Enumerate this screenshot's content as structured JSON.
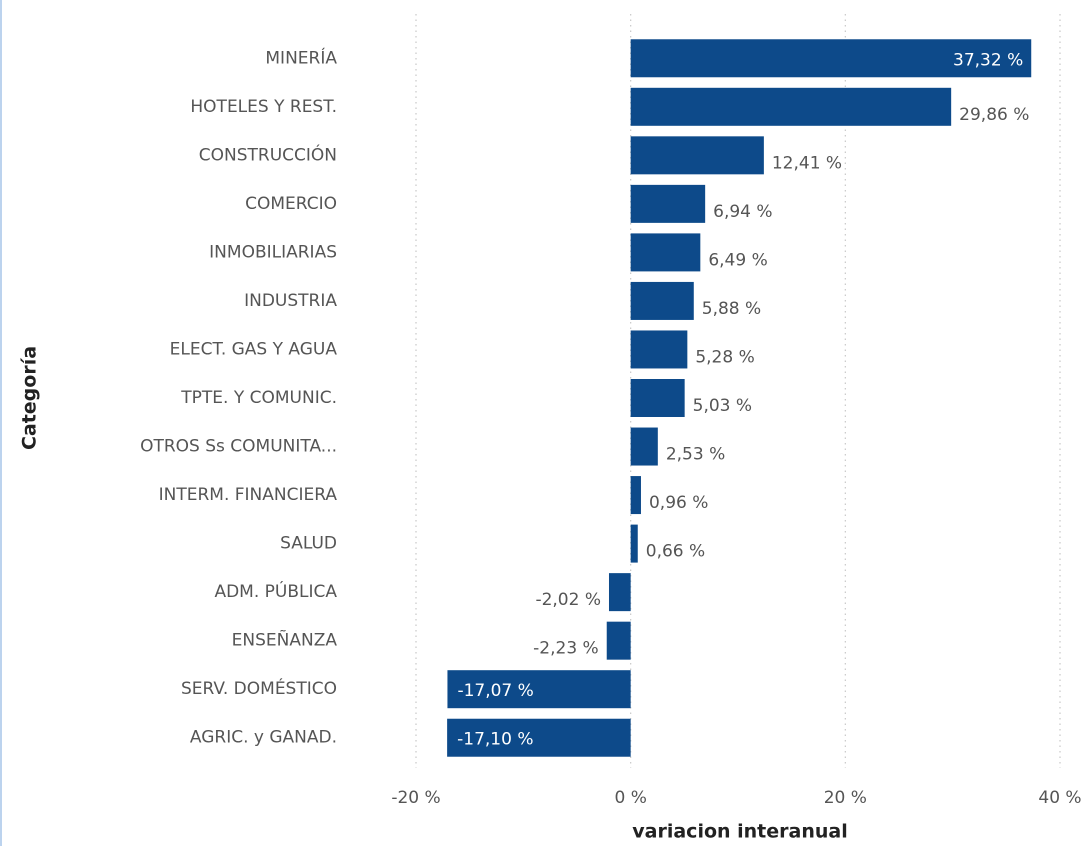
{
  "chart_data": {
    "type": "bar",
    "orientation": "horizontal",
    "xlabel": "variacion interanual",
    "ylabel": "Categoría",
    "categories": [
      "MINERÍA",
      "HOTELES Y REST.",
      "CONSTRUCCIÓN",
      "COMERCIO",
      "INMOBILIARIAS",
      "INDUSTRIA",
      "ELECT. GAS Y AGUA",
      "TPTE. Y COMUNIC.",
      "OTROS Ss COMUNITA...",
      "INTERM. FINANCIERA",
      "SALUD",
      "ADM. PÚBLICA",
      "ENSEÑANZA",
      "SERV. DOMÉSTICO",
      "AGRIC. y GANAD."
    ],
    "values": [
      37.32,
      29.86,
      12.41,
      6.94,
      6.49,
      5.88,
      5.28,
      5.03,
      2.53,
      0.96,
      0.66,
      -2.02,
      -2.23,
      -17.07,
      -17.1
    ],
    "value_labels": [
      "37,32 %",
      "29,86 %",
      "12,41 %",
      "6,94 %",
      "6,49 %",
      "5,88 %",
      "5,28 %",
      "5,03 %",
      "2,53 %",
      "0,96 %",
      "0,66 %",
      "-2,02 %",
      "-2,23 %",
      "-17,07 %",
      "-17,10 %"
    ],
    "color": "#0d4a8a",
    "xlim": [
      -20,
      40
    ],
    "xticks": [
      {
        "value": -20,
        "label": "-20 %"
      },
      {
        "value": 0,
        "label": "0 %"
      },
      {
        "value": 20,
        "label": "20 %"
      },
      {
        "value": 40,
        "label": "40 %"
      }
    ],
    "grid": true
  }
}
